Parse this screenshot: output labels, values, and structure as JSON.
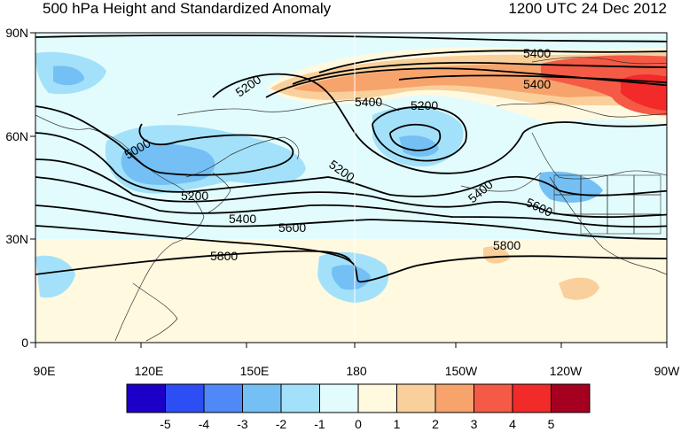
{
  "header": {
    "title": "500 hPa Height and Standardized Anomaly",
    "timestamp": "1200 UTC 24 Dec 2012"
  },
  "map": {
    "lat_ticks": [
      "90N",
      "60N",
      "30N",
      "0"
    ],
    "lon_ticks": [
      "90E",
      "120E",
      "150E",
      "180",
      "150W",
      "120W",
      "90W"
    ],
    "contour_labels": [
      "5400",
      "5400",
      "5200",
      "5400",
      "5200",
      "5000",
      "5200",
      "5200",
      "5400",
      "5600",
      "5400",
      "5600",
      "5800",
      "5800"
    ]
  },
  "colorbar": {
    "labels": [
      "-5",
      "-4",
      "-3",
      "-2",
      "-1",
      "0",
      "1",
      "2",
      "3",
      "4",
      "5"
    ],
    "colors": [
      "#1c00c8",
      "#2e4ef5",
      "#4f88f7",
      "#74c0f5",
      "#a3e1fa",
      "#e2fcfd",
      "#fff9e0",
      "#f9d09b",
      "#f7a36c",
      "#f45a45",
      "#f22a2a",
      "#a60020"
    ]
  }
}
